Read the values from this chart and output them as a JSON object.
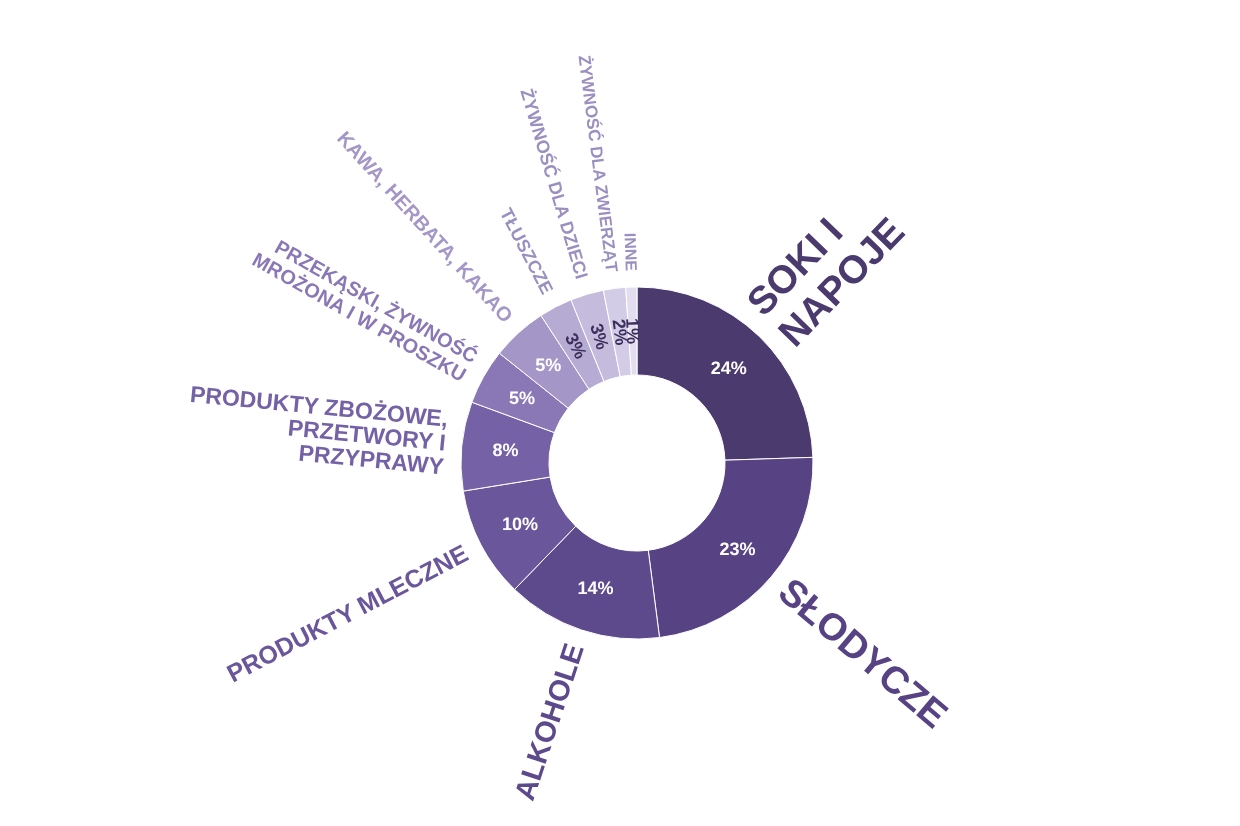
{
  "chart_data": {
    "type": "donut",
    "categories": [
      "SOKI I\nNAPOJE",
      "SŁODYCZE",
      "ALKOHOLE",
      "PRODUKTY MLECZNE",
      "PRODUKTY ZBOŻOWE,\nPRZETWORY I\nPRZYPRAWY",
      "PRZEKĄSKI, ŻYWNOŚĆ\nMROŻONA I W PROSZKU",
      "KAWA, HERBATA, KAKAO",
      "TŁUSZCZE",
      "ŻYWNOŚĆ DLA DZIECI",
      "ŻYWNOŚĆ DLA ZWIERZĄT",
      "INNE"
    ],
    "values": [
      24,
      23,
      14,
      10,
      8,
      5,
      5,
      3,
      3,
      2,
      1
    ],
    "value_labels": [
      "24%",
      "23%",
      "14%",
      "10%",
      "8%",
      "5%",
      "5%",
      "3%",
      "3%",
      "2%",
      "1%"
    ],
    "colors": [
      "#4b3a6e",
      "#574383",
      "#5d4a8c",
      "#6a569a",
      "#7461a6",
      "#8a78b6",
      "#a497c8",
      "#b6abd3",
      "#c5bcdd",
      "#d3cce6",
      "#e3deef"
    ]
  }
}
